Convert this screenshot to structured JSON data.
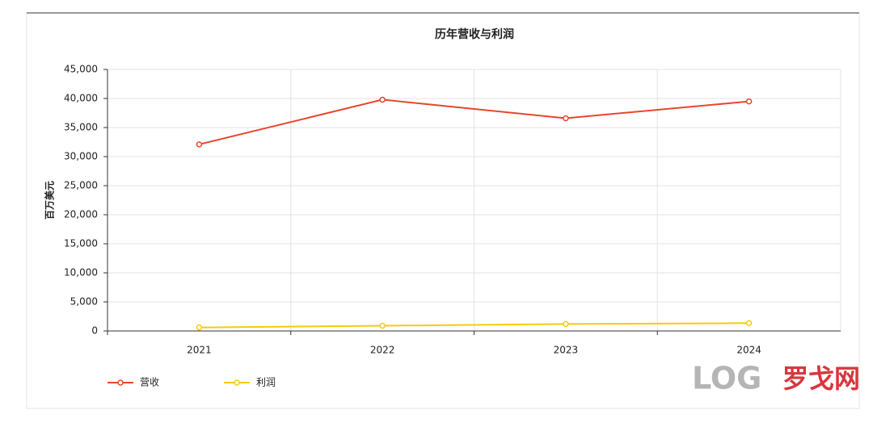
{
  "chart_data": {
    "type": "line",
    "title": "历年营收与利润",
    "y_label": "百万美元",
    "categories": [
      "2021",
      "2022",
      "2023",
      "2024"
    ],
    "series": [
      {
        "name": "营收",
        "color": "#e8452c",
        "values": [
          32100,
          39800,
          36600,
          39500
        ]
      },
      {
        "name": "利润",
        "color": "#f5cc0a",
        "values": [
          600,
          900,
          1200,
          1350
        ]
      }
    ],
    "ylim": [
      0,
      45000
    ],
    "yticks": [
      0,
      {
        "value": 5000,
        "label": "5,000"
      },
      {
        "value": 10000,
        "label": "10,000"
      },
      {
        "value": 15000,
        "label": "15,000"
      },
      {
        "value": 20000,
        "label": "20,000"
      },
      {
        "value": 25000,
        "label": "25,000"
      },
      {
        "value": 30000,
        "label": "30,000"
      },
      {
        "value": 35000,
        "label": "35,000"
      },
      {
        "value": 40000,
        "label": "40,000"
      },
      {
        "value": 45000,
        "label": "45,000"
      }
    ],
    "grid": true,
    "legend": "bottom-left"
  },
  "watermark": {
    "brand": "LOG",
    "name": "罗戈网"
  }
}
